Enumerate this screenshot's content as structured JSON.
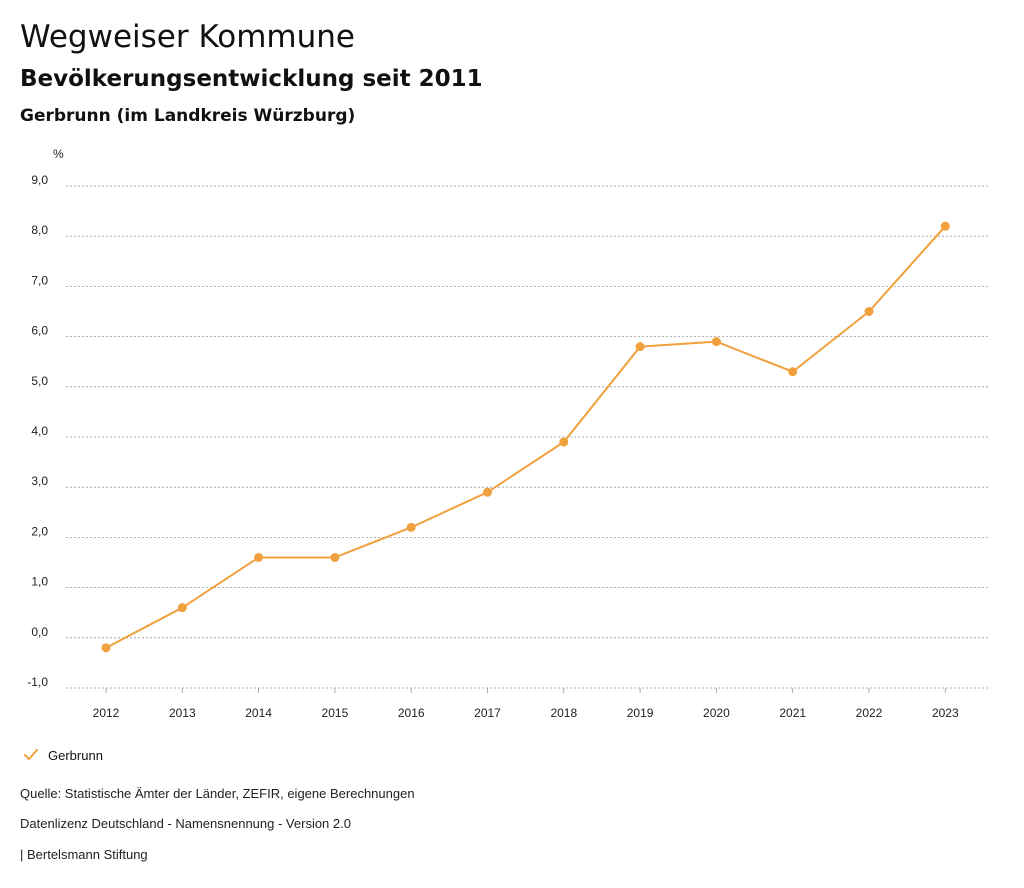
{
  "header": {
    "title": "Wegweiser Kommune",
    "subtitle": "Bevölkerungsentwicklung seit 2011",
    "region": "Gerbrunn (im Landkreis Würzburg)"
  },
  "legend": {
    "label": "Gerbrunn",
    "icon": "check-icon"
  },
  "footer": {
    "source": "Quelle: Statistische Ämter der Länder, ZEFIR, eigene Berechnungen",
    "license": "Datenlizenz Deutschland - Namensnennung - Version 2.0",
    "publisher": "| Bertelsmann Stiftung"
  },
  "colors": {
    "series": "#f0a03c",
    "grid": "#999999"
  },
  "chart_data": {
    "type": "line",
    "title": "Bevölkerungsentwicklung seit 2011",
    "ylabel": "%",
    "xlabel": "",
    "categories": [
      "2012",
      "2013",
      "2014",
      "2015",
      "2016",
      "2017",
      "2018",
      "2019",
      "2020",
      "2021",
      "2022",
      "2023"
    ],
    "series": [
      {
        "name": "Gerbrunn",
        "values": [
          -0.2,
          0.6,
          1.6,
          1.6,
          2.2,
          2.9,
          3.9,
          5.8,
          5.9,
          5.3,
          6.5,
          8.2
        ]
      }
    ],
    "ylim": [
      -1,
      9
    ],
    "yticks": [
      -1,
      0,
      1,
      2,
      3,
      4,
      5,
      6,
      7,
      8,
      9
    ],
    "ytick_labels": [
      "-1,0",
      "0,0",
      "1,0",
      "2,0",
      "3,0",
      "4,0",
      "5,0",
      "6,0",
      "7,0",
      "8,0",
      "9,0"
    ],
    "grid": true,
    "legend_position": "bottom-left"
  }
}
